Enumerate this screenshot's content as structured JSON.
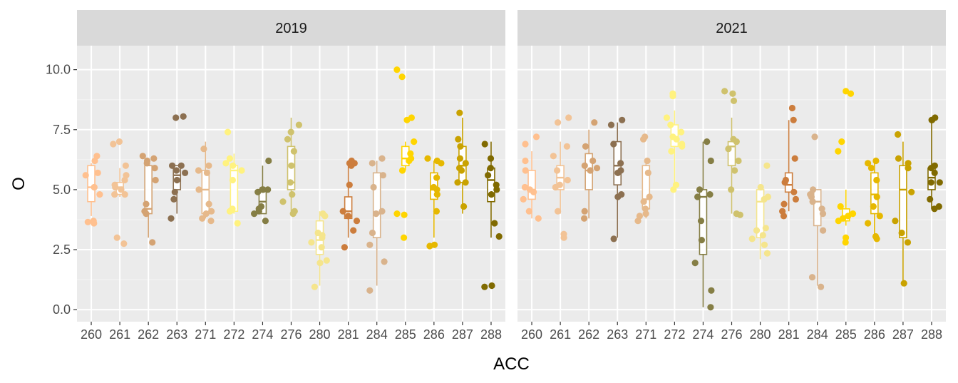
{
  "chart_data": {
    "type": "boxplot_jitter",
    "facets": [
      "2019",
      "2021"
    ],
    "xlabel": "ACC",
    "ylabel": "O",
    "ylim": [
      -0.5,
      11.0
    ],
    "y_ticks": [
      0.0,
      2.5,
      5.0,
      7.5,
      10.0
    ],
    "y_tick_labels": [
      "0.0",
      "2.5",
      "5.0",
      "7.5",
      "10.0"
    ],
    "categories": [
      "260",
      "261",
      "262",
      "263",
      "271",
      "272",
      "274",
      "276",
      "280",
      "281",
      "284",
      "285",
      "286",
      "287",
      "288"
    ],
    "colors": {
      "260": "#ffc08f",
      "261": "#f2c396",
      "262": "#d4a373",
      "263": "#8c7051",
      "271": "#e6b98b",
      "272": "#fff27f",
      "274": "#857e45",
      "276": "#cfc26d",
      "280": "#f5e58c",
      "281": "#cc7d3d",
      "284": "#d9b38c",
      "285": "#ffd500",
      "286": "#e6b800",
      "287": "#c9a200",
      "288": "#806a00"
    },
    "panels": [
      {
        "facet": "2019",
        "groups": [
          {
            "category": "260",
            "box": [
              3.9,
              4.5,
              5.1,
              6.0,
              6.1
            ],
            "points": [
              3.6,
              3.65,
              3.7,
              4.8,
              5.1,
              5.1,
              5.6,
              5.7,
              6.2,
              6.4
            ]
          },
          {
            "category": "261",
            "box": [
              4.7,
              4.8,
              5.1,
              5.3,
              5.9
            ],
            "points": [
              2.75,
              3.0,
              4.8,
              4.8,
              5.0,
              5.1,
              5.2,
              5.4,
              5.6,
              6.0,
              6.9,
              7.0
            ]
          },
          {
            "category": "262",
            "box": [
              3.0,
              4.0,
              4.2,
              6.0,
              6.3
            ],
            "points": [
              2.8,
              4.0,
              4.1,
              4.4,
              5.4,
              5.9,
              6.1,
              6.2,
              6.3,
              6.4
            ]
          },
          {
            "category": "263",
            "box": [
              4.0,
              5.0,
              5.6,
              6.0,
              6.0
            ],
            "points": [
              3.8,
              4.6,
              4.9,
              5.4,
              5.7,
              5.8,
              6.0,
              6.0,
              8.0,
              8.05
            ]
          },
          {
            "category": "271",
            "box": [
              3.8,
              4.0,
              5.0,
              5.8,
              7.0
            ],
            "points": [
              3.7,
              3.8,
              4.0,
              4.1,
              4.4,
              5.0,
              5.7,
              5.8,
              6.0,
              6.7
            ]
          },
          {
            "category": "272",
            "box": [
              4.0,
              4.1,
              5.8,
              6.0,
              6.5
            ],
            "points": [
              3.6,
              4.1,
              4.15,
              4.2,
              5.4,
              5.8,
              6.0,
              6.1,
              6.3,
              7.4
            ]
          },
          {
            "category": "274",
            "box": [
              4.0,
              4.0,
              4.5,
              5.0,
              6.0
            ],
            "points": [
              3.7,
              4.0,
              4.1,
              4.2,
              4.3,
              4.9,
              5.0,
              5.0,
              5.0,
              6.2
            ]
          },
          {
            "category": "276",
            "box": [
              4.0,
              5.0,
              5.3,
              6.8,
              8.0
            ],
            "points": [
              4.0,
              4.1,
              4.5,
              4.8,
              5.3,
              6.0,
              6.6,
              7.1,
              7.4,
              7.7
            ]
          },
          {
            "category": "280",
            "box": [
              1.0,
              2.3,
              2.9,
              3.7,
              4.1
            ],
            "points": [
              0.95,
              1.95,
              2.05,
              2.6,
              2.8,
              3.0,
              3.1,
              3.2,
              3.9,
              4.0
            ]
          },
          {
            "category": "281",
            "box": [
              3.0,
              3.8,
              4.1,
              4.7,
              6.2
            ],
            "points": [
              2.6,
              3.3,
              3.7,
              3.9,
              4.1,
              5.2,
              6.0,
              6.1,
              6.1,
              6.2
            ]
          },
          {
            "category": "284",
            "box": [
              1.0,
              3.0,
              4.0,
              5.7,
              6.2
            ],
            "points": [
              0.8,
              2.0,
              2.7,
              3.2,
              4.0,
              4.1,
              5.1,
              5.6,
              6.1,
              6.3
            ]
          },
          {
            "category": "285",
            "box": [
              5.8,
              6.0,
              6.3,
              6.8,
              7.0
            ],
            "points": [
              3.0,
              3.95,
              4.0,
              5.8,
              6.2,
              6.3,
              6.5,
              7.0,
              7.9,
              8.0,
              9.7,
              10.0
            ]
          },
          {
            "category": "286",
            "box": [
              3.0,
              4.6,
              5.0,
              5.7,
              6.2
            ],
            "points": [
              2.65,
              2.7,
              4.1,
              4.8,
              5.0,
              5.1,
              5.5,
              6.1,
              6.2,
              6.3
            ]
          },
          {
            "category": "287",
            "box": [
              4.0,
              5.3,
              6.0,
              6.8,
              8.0
            ],
            "points": [
              4.3,
              5.3,
              5.3,
              5.8,
              5.9,
              6.1,
              6.3,
              6.8,
              7.1,
              8.2
            ]
          },
          {
            "category": "288",
            "box": [
              3.0,
              4.5,
              5.4,
              5.9,
              7.0
            ],
            "points": [
              0.95,
              1.0,
              3.05,
              3.6,
              4.8,
              5.0,
              5.2,
              5.6,
              5.9,
              6.3,
              6.9
            ]
          }
        ]
      },
      {
        "facet": "2021",
        "groups": [
          {
            "category": "260",
            "box": [
              3.8,
              4.6,
              5.0,
              5.8,
              6.6
            ],
            "points": [
              3.8,
              4.1,
              4.6,
              4.9,
              5.0,
              5.1,
              5.8,
              6.2,
              6.9,
              7.2
            ]
          },
          {
            "category": "261",
            "box": [
              4.0,
              5.0,
              5.5,
              6.0,
              7.0
            ],
            "points": [
              3.0,
              3.15,
              4.1,
              5.1,
              5.2,
              5.4,
              5.8,
              6.4,
              6.8,
              7.8,
              8.0
            ]
          },
          {
            "category": "262",
            "box": [
              3.8,
              5.0,
              5.8,
              6.5,
              7.5
            ],
            "points": [
              3.8,
              4.1,
              5.8,
              5.9,
              6.0,
              6.2,
              6.8,
              7.8
            ]
          },
          {
            "category": "263",
            "box": [
              3.0,
              5.2,
              6.0,
              7.0,
              7.8
            ],
            "points": [
              2.95,
              4.7,
              4.8,
              5.7,
              5.8,
              6.1,
              6.9,
              7.7,
              7.9
            ]
          },
          {
            "category": "271",
            "box": [
              3.8,
              4.2,
              4.6,
              6.0,
              6.3
            ],
            "points": [
              3.7,
              3.9,
              4.0,
              4.2,
              4.5,
              4.7,
              5.7,
              6.2,
              7.1,
              7.2
            ]
          },
          {
            "category": "272",
            "box": [
              5.2,
              6.8,
              7.2,
              7.7,
              8.3
            ],
            "points": [
              5.0,
              5.2,
              6.6,
              6.8,
              6.9,
              7.1,
              7.2,
              7.4,
              7.7,
              8.0,
              8.9,
              9.0
            ]
          },
          {
            "category": "274",
            "box": [
              0.1,
              2.3,
              4.7,
              5.0,
              7.0
            ],
            "points": [
              0.1,
              0.8,
              1.95,
              2.9,
              3.7,
              4.7,
              4.8,
              5.0,
              6.2,
              7.0
            ]
          },
          {
            "category": "276",
            "box": [
              4.0,
              6.0,
              6.8,
              7.0,
              8.0
            ],
            "points": [
              3.95,
              4.0,
              5.0,
              5.8,
              6.2,
              6.7,
              7.0,
              7.1,
              8.7,
              9.0,
              9.1
            ]
          },
          {
            "category": "280",
            "box": [
              2.1,
              3.0,
              4.5,
              5.0,
              5.1
            ],
            "points": [
              2.35,
              2.7,
              2.95,
              3.1,
              3.3,
              3.4,
              4.6,
              4.7,
              5.1,
              6.0
            ]
          },
          {
            "category": "281",
            "box": [
              4.1,
              4.9,
              5.2,
              5.7,
              7.9
            ],
            "points": [
              3.9,
              4.1,
              4.4,
              4.6,
              4.9,
              5.3,
              5.4,
              6.3,
              7.9,
              8.4
            ]
          },
          {
            "category": "284",
            "box": [
              1.0,
              3.5,
              4.5,
              5.0,
              5.0
            ],
            "points": [
              0.95,
              1.35,
              3.3,
              4.0,
              4.2,
              4.5,
              4.7,
              4.8,
              5.0,
              7.2
            ]
          },
          {
            "category": "285",
            "box": [
              3.5,
              3.7,
              3.9,
              4.2,
              5.0
            ],
            "points": [
              2.8,
              3.0,
              3.7,
              3.8,
              3.9,
              4.0,
              4.3,
              6.6,
              7.0,
              9.0,
              9.1
            ]
          },
          {
            "category": "286",
            "box": [
              3.0,
              4.0,
              4.8,
              5.7,
              6.2
            ],
            "points": [
              2.95,
              3.05,
              3.6,
              3.9,
              4.3,
              4.7,
              5.4,
              5.9,
              6.1,
              6.2
            ]
          },
          {
            "category": "287",
            "box": [
              1.0,
              3.0,
              5.0,
              6.0,
              7.0
            ],
            "points": [
              1.1,
              2.8,
              3.2,
              3.7,
              4.9,
              5.9,
              6.1,
              6.3,
              7.3
            ]
          },
          {
            "category": "288",
            "box": [
              4.2,
              5.0,
              5.5,
              5.9,
              7.9
            ],
            "points": [
              4.2,
              4.3,
              4.6,
              5.3,
              5.3,
              5.7,
              5.9,
              6.0,
              7.9,
              7.9,
              8.0
            ]
          }
        ]
      }
    ]
  }
}
